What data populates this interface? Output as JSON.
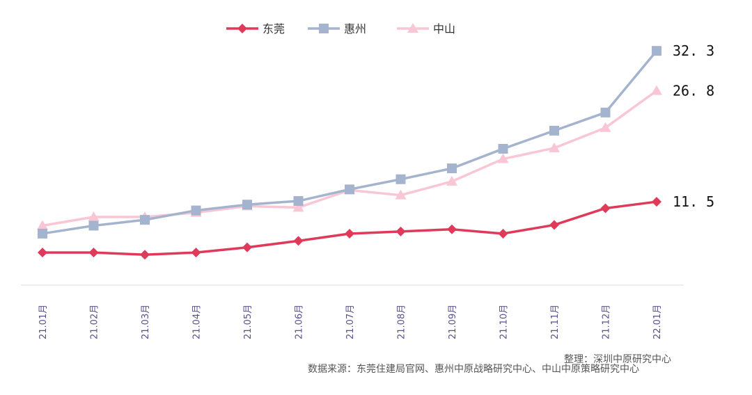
{
  "chart_data": {
    "type": "line",
    "title": "",
    "xlabel": "",
    "ylabel": "",
    "categories": [
      "21.01月",
      "21.02月",
      "21.03月",
      "21.04月",
      "21.05月",
      "21.06月",
      "21.07月",
      "21.08月",
      "21.09月",
      "21.10月",
      "21.11月",
      "21.12月",
      "22.01月"
    ],
    "ylim": [
      0,
      35
    ],
    "legend_position": "top-center",
    "series": [
      {
        "name": "东莞",
        "color": "#e03a5a",
        "marker": "diamond",
        "values": [
          4.5,
          4.5,
          4.2,
          4.5,
          5.2,
          6.1,
          7.1,
          7.4,
          7.7,
          7.1,
          8.3,
          10.6,
          11.5
        ]
      },
      {
        "name": "惠州",
        "color": "#a4b4cf",
        "marker": "square",
        "values": [
          7.1,
          8.2,
          9.0,
          10.3,
          11.1,
          11.6,
          13.2,
          14.6,
          16.1,
          18.8,
          21.3,
          23.8,
          32.3
        ]
      },
      {
        "name": "中山",
        "color": "#f8c6d4",
        "marker": "triangle",
        "values": [
          8.2,
          9.4,
          9.4,
          10.0,
          10.9,
          10.7,
          13.1,
          12.4,
          14.3,
          17.4,
          18.9,
          21.7,
          26.8
        ]
      }
    ],
    "end_labels": [
      {
        "series": "惠州",
        "text": "32. 3"
      },
      {
        "series": "中山",
        "text": "26. 8"
      },
      {
        "series": "东莞",
        "text": "11. 5"
      }
    ]
  },
  "source_text": "数据来源：东莞住建局官网、惠州中原战略研究中心、中山中原策略研究中心",
  "credit_text": "整理：深圳中原研究中心"
}
